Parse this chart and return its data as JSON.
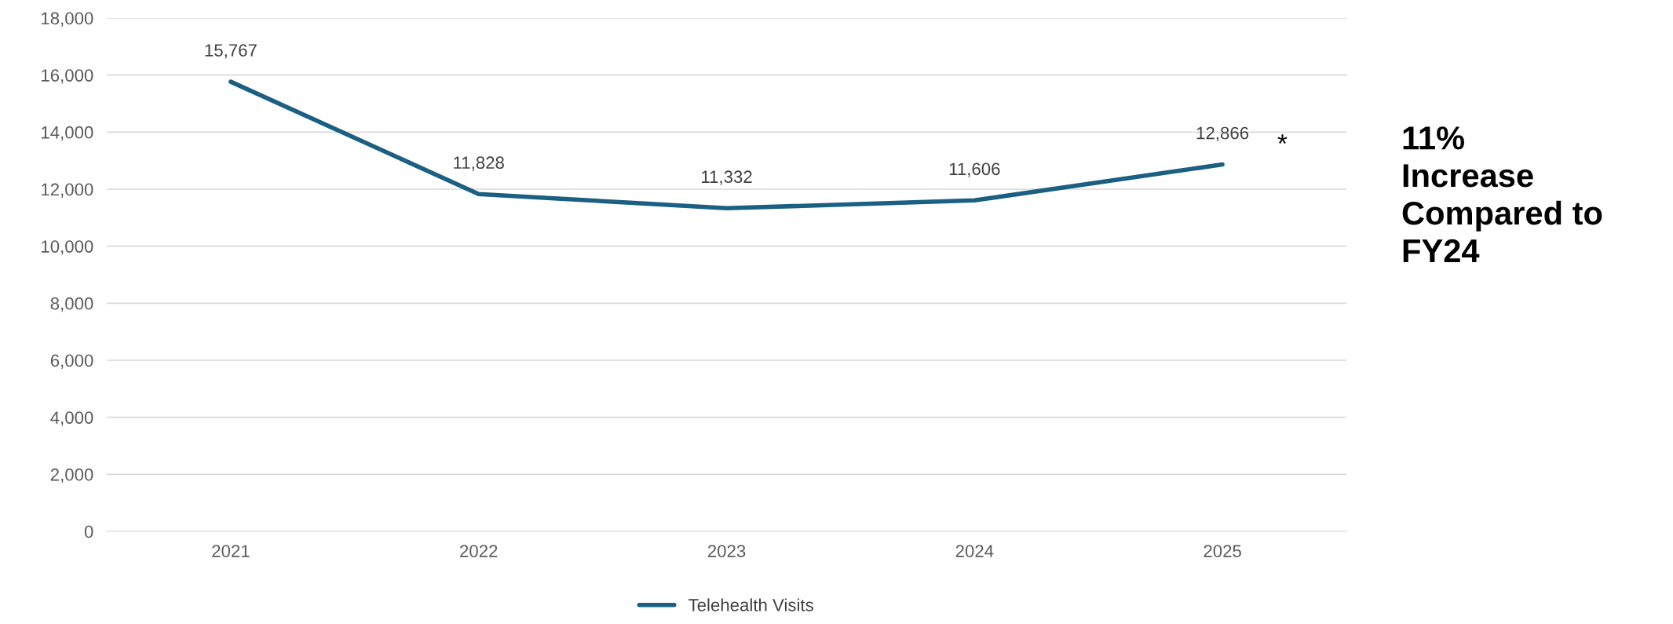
{
  "chart_data": {
    "type": "line",
    "categories": [
      "2021",
      "2022",
      "2023",
      "2024",
      "2025"
    ],
    "series": [
      {
        "name": "Telehealth Visits",
        "color": "#1b6082",
        "values": [
          15767,
          11828,
          11332,
          11606,
          12866
        ],
        "value_labels": [
          "15,767",
          "11,828",
          "11,332",
          "11,606",
          "12,866"
        ]
      }
    ],
    "ylim": [
      0,
      18000
    ],
    "yticks": [
      {
        "value": 0,
        "label": "0"
      },
      {
        "value": 2000,
        "label": "2,000"
      },
      {
        "value": 4000,
        "label": "4,000"
      },
      {
        "value": 6000,
        "label": "6,000"
      },
      {
        "value": 8000,
        "label": "8,000"
      },
      {
        "value": 10000,
        "label": "10,000"
      },
      {
        "value": 12000,
        "label": "12,000"
      },
      {
        "value": 14000,
        "label": "14,000"
      },
      {
        "value": 16000,
        "label": "16,000"
      },
      {
        "value": 18000,
        "label": "18,000"
      }
    ],
    "grid": "y",
    "legend": "bottom",
    "marker": "none",
    "line_style": "solid",
    "annotations": [
      {
        "text": "*",
        "x": "2025",
        "y": 12866
      },
      "11%\nIncrease\nCompared to\nFY24"
    ]
  }
}
